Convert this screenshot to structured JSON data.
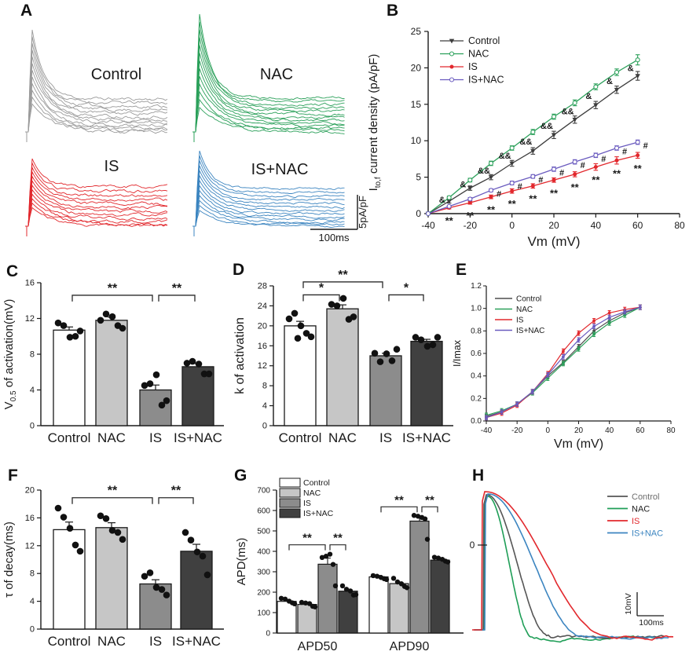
{
  "figure": {
    "background": "#ffffff",
    "panel_labels": {
      "A": "A",
      "B": "B",
      "C": "C",
      "D": "D",
      "E": "E",
      "F": "F",
      "G": "G",
      "H": "H"
    }
  },
  "colors": {
    "control_trace": "#9b9b9b",
    "control_dark": "#3d3d3d",
    "nac_green": "#2ba05a",
    "is_red": "#e2282d",
    "isnac_blue": "#3c85c0",
    "isnac_purple": "#6a5bbf",
    "bar_control": "#ffffff",
    "bar_nac": "#c6c6c6",
    "bar_is": "#8c8c8c",
    "bar_isnac": "#404040"
  },
  "chart_data": [
    {
      "panel": "A",
      "type": "line",
      "subtype": "representative-current-traces",
      "trace_groups": [
        {
          "label": "Control",
          "color": "#9b9b9b",
          "position": "top-left"
        },
        {
          "label": "NAC",
          "color": "#2ba05a",
          "position": "top-right"
        },
        {
          "label": "IS",
          "color": "#e2282d",
          "position": "bottom-left"
        },
        {
          "label": "IS+NAC",
          "color": "#3c85c0",
          "position": "bottom-right"
        }
      ],
      "scale_bar": {
        "time": "100ms",
        "amplitude": "5pA/pF"
      }
    },
    {
      "panel": "B",
      "type": "line",
      "subtype": "current-voltage",
      "xlabel": "Vm (mV)",
      "ylabel_parts": [
        {
          "t": "I"
        },
        {
          "t": "to,f",
          "sub": true
        },
        {
          "t": " current density (pA/pF)"
        }
      ],
      "xlim": [
        -40,
        80
      ],
      "ylim": [
        0,
        25
      ],
      "xticks": [
        -40,
        -20,
        0,
        20,
        40,
        60,
        80
      ],
      "yticks": [
        0,
        5,
        10,
        15,
        20,
        25
      ],
      "x": [
        -40,
        -30,
        -20,
        -10,
        0,
        10,
        20,
        30,
        40,
        50,
        60
      ],
      "series": [
        {
          "name": "Control",
          "color": "#3d3d3d",
          "marker": "triangle-filled",
          "values": [
            0,
            1.7,
            3.5,
            5.0,
            6.9,
            8.6,
            10.8,
            12.9,
            14.9,
            17.0,
            18.9
          ],
          "errors": [
            0,
            0.25,
            0.3,
            0.35,
            0.4,
            0.45,
            0.5,
            0.5,
            0.5,
            0.5,
            0.6
          ]
        },
        {
          "name": "NAC",
          "color": "#2ba05a",
          "marker": "circle-open",
          "values": [
            0,
            2.2,
            4.6,
            6.9,
            9.0,
            11.2,
            13.3,
            15.2,
            17.4,
            19.4,
            21.1
          ],
          "errors": [
            0,
            0.2,
            0.25,
            0.3,
            0.3,
            0.35,
            0.35,
            0.4,
            0.4,
            0.45,
            0.7
          ]
        },
        {
          "name": "IS",
          "color": "#e2282d",
          "marker": "circle-filled",
          "values": [
            0,
            0.8,
            1.5,
            2.3,
            3.1,
            3.8,
            4.6,
            5.4,
            6.4,
            7.3,
            8.0
          ],
          "errors": [
            0,
            0.15,
            0.2,
            0.25,
            0.3,
            0.3,
            0.3,
            0.35,
            0.45,
            0.5,
            0.4
          ]
        },
        {
          "name": "IS+NAC",
          "color": "#6a5bbf",
          "marker": "circle-open",
          "values": [
            0,
            1.0,
            2.0,
            3.2,
            4.2,
            5.1,
            6.1,
            7.1,
            8.0,
            9.0,
            9.8
          ],
          "errors": [
            0,
            0.15,
            0.2,
            0.2,
            0.25,
            0.25,
            0.3,
            0.3,
            0.3,
            0.3,
            0.3
          ]
        }
      ],
      "significance": {
        "nac_vs_control": [
          "",
          "&",
          "&",
          "&&",
          "&&",
          "&&",
          "&&",
          "&&",
          "&",
          "&",
          "&"
        ],
        "isnac_vs_is": [
          "",
          "",
          "",
          "#",
          "#",
          "#",
          "#",
          "#",
          "#",
          "#",
          "#"
        ],
        "is_vs_control": [
          "",
          "**",
          "**",
          "**",
          "**",
          "**",
          "**",
          "**",
          "**",
          "**",
          "**"
        ]
      },
      "legend": [
        "Control",
        "NAC",
        "IS",
        "IS+NAC"
      ]
    },
    {
      "panel": "C",
      "type": "bar",
      "ylabel_parts": [
        {
          "t": "V"
        },
        {
          "t": "0.5",
          "sub": true
        },
        {
          "t": " of activation(mV)"
        }
      ],
      "categories": [
        "Control",
        "NAC",
        "IS",
        "IS+NAC"
      ],
      "values": [
        10.7,
        11.8,
        4.0,
        6.6
      ],
      "errors": [
        0.35,
        0.35,
        0.55,
        0.35
      ],
      "bar_colors": [
        "#ffffff",
        "#c6c6c6",
        "#8c8c8c",
        "#404040"
      ],
      "ylim": [
        0,
        16
      ],
      "yticks": [
        0,
        4,
        8,
        12,
        16
      ],
      "points": [
        [
          11.5,
          11.2,
          9.9,
          10.0,
          10.6
        ],
        [
          11.8,
          12.5,
          12.2,
          11.2,
          10.9
        ],
        [
          4.5,
          4.7,
          5.7,
          2.3,
          2.8
        ],
        [
          7.0,
          7.2,
          6.9,
          5.8,
          5.8
        ]
      ],
      "significance": [
        {
          "from": 0,
          "to": 2,
          "label": "**",
          "y": 14.6
        },
        {
          "from": 2,
          "to": 3,
          "label": "**",
          "y": 14.6
        }
      ]
    },
    {
      "panel": "D",
      "type": "bar",
      "ylabel_parts": [
        {
          "t": "k of activation"
        }
      ],
      "categories": [
        "Control",
        "NAC",
        "IS",
        "IS+NAC"
      ],
      "values": [
        20.0,
        23.4,
        14.0,
        16.9
      ],
      "errors": [
        0.9,
        0.8,
        0.5,
        0.4
      ],
      "bar_colors": [
        "#ffffff",
        "#c6c6c6",
        "#8c8c8c",
        "#404040"
      ],
      "ylim": [
        0,
        28
      ],
      "yticks": [
        0,
        4,
        8,
        12,
        16,
        20,
        24,
        28
      ],
      "points": [
        [
          21.4,
          22.5,
          20.0,
          18.5,
          17.8,
          17.5
        ],
        [
          24.3,
          24.0,
          25.5,
          21.3,
          21.8
        ],
        [
          14.5,
          12.8,
          14.4,
          13.0,
          15.3
        ],
        [
          17.7,
          17.2,
          15.9,
          16.2,
          17.7
        ]
      ],
      "significance": [
        {
          "from": 0,
          "to": 2,
          "label": "**",
          "y": 28.8
        },
        {
          "from": 0,
          "to": 1,
          "label": "*",
          "y": 26.2
        },
        {
          "from": 2,
          "to": 3,
          "label": "*",
          "y": 26.2
        }
      ]
    },
    {
      "panel": "E",
      "type": "line",
      "subtype": "steady-state-activation",
      "xlabel": "Vm (mV)",
      "ylabel": "I/Imax",
      "xlim": [
        -40,
        80
      ],
      "ylim": [
        0,
        1.2
      ],
      "xticks": [
        -40,
        -20,
        0,
        20,
        40,
        60,
        80
      ],
      "yticks": [
        0,
        0.2,
        0.4,
        0.6,
        0.8,
        1.0,
        1.2
      ],
      "x": [
        -40,
        -30,
        -20,
        -10,
        0,
        10,
        20,
        30,
        40,
        50,
        60
      ],
      "error": 0.02,
      "series": [
        {
          "name": "Control",
          "color": "#4d4d4d",
          "values": [
            0.04,
            0.08,
            0.15,
            0.26,
            0.4,
            0.52,
            0.66,
            0.8,
            0.89,
            0.96,
            1.01
          ]
        },
        {
          "name": "NAC",
          "color": "#2ba05a",
          "values": [
            0.05,
            0.09,
            0.15,
            0.25,
            0.38,
            0.51,
            0.64,
            0.77,
            0.87,
            0.94,
            1.01
          ]
        },
        {
          "name": "IS",
          "color": "#e2282d",
          "values": [
            0.03,
            0.07,
            0.14,
            0.26,
            0.42,
            0.62,
            0.78,
            0.89,
            0.96,
            0.99,
            1.01
          ]
        },
        {
          "name": "IS+NAC",
          "color": "#6a5bbf",
          "values": [
            0.03,
            0.08,
            0.15,
            0.26,
            0.41,
            0.57,
            0.72,
            0.84,
            0.92,
            0.97,
            1.01
          ]
        }
      ],
      "legend": [
        "Control",
        "NAC",
        "IS",
        "IS+NAC"
      ]
    },
    {
      "panel": "F",
      "type": "bar",
      "ylabel_parts": [
        {
          "t": "τ of decay(ms)"
        }
      ],
      "categories": [
        "Control",
        "NAC",
        "IS",
        "IS+NAC"
      ],
      "values": [
        14.3,
        14.6,
        6.5,
        11.2
      ],
      "errors": [
        1.1,
        0.7,
        0.6,
        1.0
      ],
      "bar_colors": [
        "#ffffff",
        "#c6c6c6",
        "#8c8c8c",
        "#404040"
      ],
      "ylim": [
        0,
        20
      ],
      "yticks": [
        0,
        4,
        8,
        12,
        16,
        20
      ],
      "points": [
        [
          17.4,
          16.1,
          14.5,
          12.1,
          11.2
        ],
        [
          16.3,
          15.9,
          14.2,
          13.9,
          12.9
        ],
        [
          7.6,
          8.1,
          6.0,
          5.7,
          4.9
        ],
        [
          13.9,
          12.8,
          11.1,
          10.5,
          7.8
        ]
      ],
      "significance": [
        {
          "from": 0,
          "to": 2,
          "label": "**",
          "y": 18.9
        },
        {
          "from": 2,
          "to": 3,
          "label": "**",
          "y": 18.9
        }
      ]
    },
    {
      "panel": "G",
      "type": "bar",
      "subtype": "grouped",
      "ylabel_parts": [
        {
          "t": "APD(ms)"
        }
      ],
      "group_labels": [
        "APD50",
        "APD90"
      ],
      "ylim": [
        0,
        700
      ],
      "yticks": [
        0,
        100,
        200,
        300,
        400,
        500,
        600,
        700
      ],
      "series": [
        {
          "name": "Control",
          "color": "#ffffff",
          "values": [
            155,
            275
          ],
          "errors": [
            8,
            7
          ],
          "points": [
            [
              170,
              166,
              156,
              148,
              143
            ],
            [
              281,
              278,
              272,
              266,
              262
            ]
          ]
        },
        {
          "name": "NAC",
          "color": "#c6c6c6",
          "values": [
            140,
            242
          ],
          "errors": [
            7,
            8
          ],
          "points": [
            [
              150,
              147,
              144,
              131,
              128
            ],
            [
              268,
              250,
              241,
              228,
              222
            ]
          ]
        },
        {
          "name": "IS",
          "color": "#8c8c8c",
          "values": [
            337,
            548
          ],
          "errors": [
            30,
            22
          ],
          "points": [
            [
              370,
              376,
              386,
              336,
              231
            ],
            [
              576,
              572,
              566,
              559,
              459
            ]
          ]
        },
        {
          "name": "IS+NAC",
          "color": "#404040",
          "values": [
            205,
            357
          ],
          "errors": [
            9,
            6
          ],
          "points": [
            [
              231,
              214,
              206,
              186,
              188
            ],
            [
              371,
              367,
              361,
              352,
              348
            ]
          ]
        }
      ],
      "significance": [
        {
          "group": 0,
          "from": 0,
          "to": 2,
          "label": "**",
          "y": 432
        },
        {
          "group": 0,
          "from": 2,
          "to": 3,
          "label": "**",
          "y": 432
        },
        {
          "group": 1,
          "from": 0,
          "to": 2,
          "label": "**",
          "y": 618
        },
        {
          "group": 1,
          "from": 2,
          "to": 3,
          "label": "**",
          "y": 618
        }
      ],
      "legend": [
        "Control",
        "NAC",
        "IS",
        "IS+NAC"
      ]
    },
    {
      "panel": "H",
      "type": "line",
      "subtype": "action-potential-traces",
      "zero_label": "0",
      "series": [
        {
          "name": "Control",
          "color": "#565656",
          "label_color": "#6e6e6e"
        },
        {
          "name": "NAC",
          "color": "#1f9e57",
          "label_color": "#1a1a1a"
        },
        {
          "name": "IS",
          "color": "#e2282d",
          "label_color": "#e2282d"
        },
        {
          "name": "IS+NAC",
          "color": "#3c85c0",
          "label_color": "#3c85c0"
        }
      ],
      "scale_bar": {
        "voltage": "10mV",
        "time": "100ms"
      }
    }
  ]
}
